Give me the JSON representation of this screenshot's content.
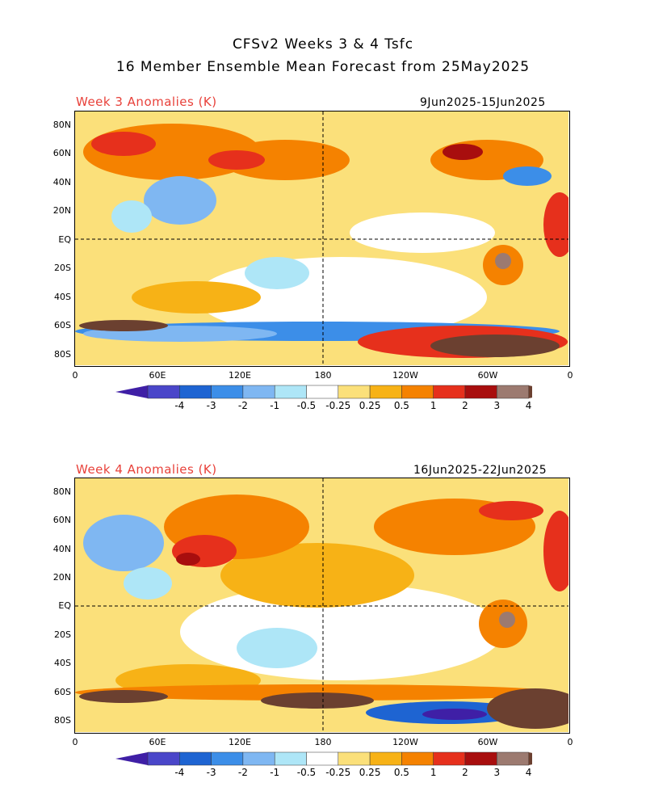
{
  "title_line1": "CFSv2 Weeks 3 & 4 Tsfc",
  "title_line2": "16 Member Ensemble Mean Forecast from 25May2025",
  "panels": [
    {
      "label": "Week 3 Anomalies (K)",
      "dates": "9Jun2025-15Jun2025"
    },
    {
      "label": "Week 4 Anomalies (K)",
      "dates": "16Jun2025-22Jun2025"
    }
  ],
  "lat_labels": [
    "80N",
    "60N",
    "40N",
    "20N",
    "EQ",
    "20S",
    "40S",
    "60S",
    "80S"
  ],
  "lon_labels": [
    "0",
    "60E",
    "120E",
    "180",
    "120W",
    "60W",
    "0"
  ],
  "colorbar": {
    "labels": [
      "-4",
      "-3",
      "-2",
      "-1",
      "-0.5",
      "-0.25",
      "0.25",
      "0.5",
      "1",
      "2",
      "3",
      "4"
    ],
    "colors": [
      "#3f1fa6",
      "#4a46c9",
      "#1e64d2",
      "#3c8ee8",
      "#7fb7f2",
      "#aee6f7",
      "#ffffff",
      "#fbe07a",
      "#f7b216",
      "#f58200",
      "#e6301c",
      "#a80e0e",
      "#9c7a70",
      "#6b4030"
    ]
  },
  "colors": {
    "title_red": "#e8413a"
  }
}
